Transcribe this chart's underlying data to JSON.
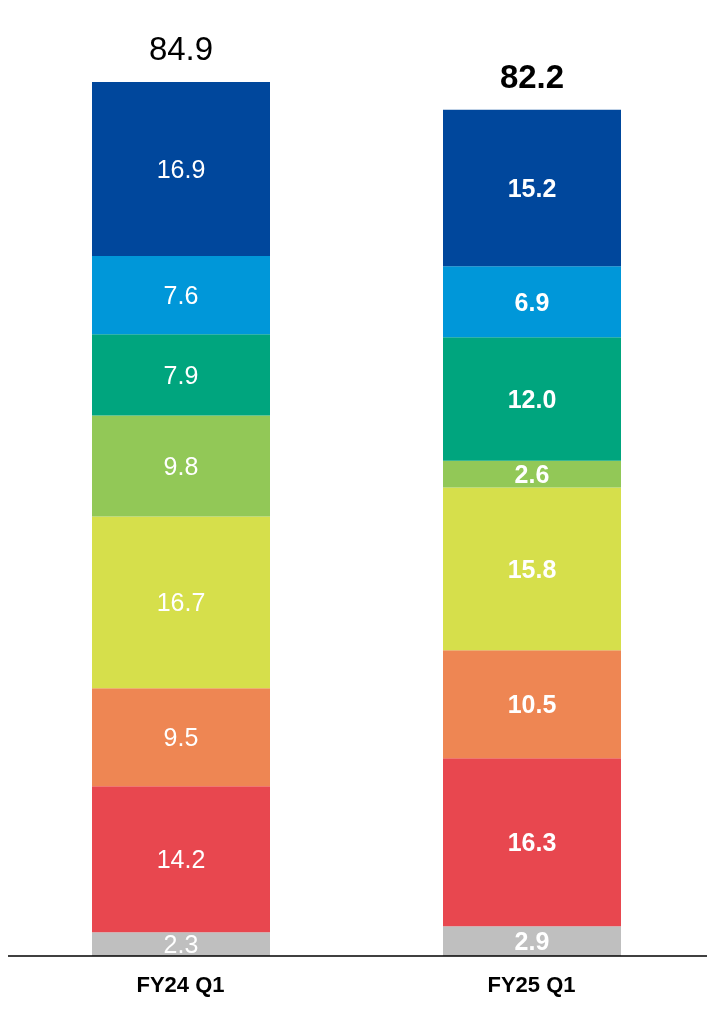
{
  "chart_data": {
    "type": "bar",
    "stacked": true,
    "categories": [
      "FY24 Q1",
      "FY25 Q1"
    ],
    "series": [
      {
        "color": "#bfbfbf",
        "values": [
          2.3,
          2.9
        ],
        "value_labels": [
          "2.3",
          "2.9"
        ]
      },
      {
        "color": "#e8474f",
        "values": [
          14.2,
          16.3
        ],
        "value_labels": [
          "14.2",
          "16.3"
        ]
      },
      {
        "color": "#ee8653",
        "values": [
          9.5,
          10.5
        ],
        "value_labels": [
          "9.5",
          "10.5"
        ]
      },
      {
        "color": "#d6df4b",
        "values": [
          16.7,
          15.8
        ],
        "value_labels": [
          "16.7",
          "15.8"
        ]
      },
      {
        "color": "#92c857",
        "values": [
          9.8,
          2.6
        ],
        "value_labels": [
          "9.8",
          "2.6"
        ]
      },
      {
        "color": "#00a57e",
        "values": [
          7.9,
          12.0
        ],
        "value_labels": [
          "7.9",
          "12.0"
        ]
      },
      {
        "color": "#0097d9",
        "values": [
          7.6,
          6.9
        ],
        "value_labels": [
          "7.6",
          "6.9"
        ]
      },
      {
        "color": "#00479c",
        "values": [
          16.9,
          15.2
        ],
        "value_labels": [
          "16.9",
          "15.2"
        ]
      }
    ],
    "totals": [
      "84.9",
      "82.2"
    ],
    "grid": false,
    "legend": false
  }
}
